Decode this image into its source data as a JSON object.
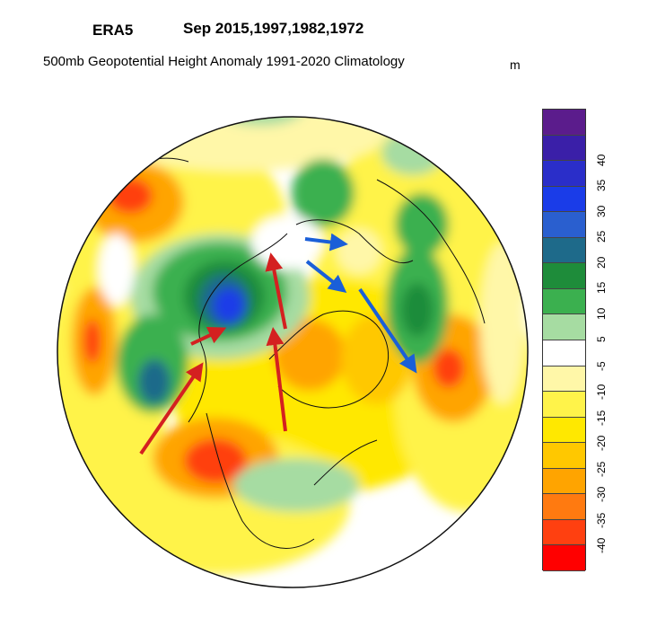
{
  "header": {
    "dataset": "ERA5",
    "period": "Sep 2015,1997,1982,1972",
    "description": "500mb Geopotential Height Anomaly  1991-2020 Climatology",
    "units": "m"
  },
  "colorbar": {
    "bins": [
      {
        "color": "#5b1c8c",
        "label": ""
      },
      {
        "color": "#3a1fa8",
        "label": "40"
      },
      {
        "color": "#2a2ec9",
        "label": "35"
      },
      {
        "color": "#1a3ce8",
        "label": "30"
      },
      {
        "color": "#2a5fcf",
        "label": "25"
      },
      {
        "color": "#1e6a8a",
        "label": "20"
      },
      {
        "color": "#1e8c3a",
        "label": "15"
      },
      {
        "color": "#3bb04f",
        "label": "10"
      },
      {
        "color": "#a6dca2",
        "label": "5"
      },
      {
        "color": "#ffffff",
        "label": "-5"
      },
      {
        "color": "#fff7a8",
        "label": "-10"
      },
      {
        "color": "#fff34a",
        "label": "-15"
      },
      {
        "color": "#ffe800",
        "label": "-20"
      },
      {
        "color": "#ffc800",
        "label": "-25"
      },
      {
        "color": "#ffa400",
        "label": "-30"
      },
      {
        "color": "#ff7a10",
        "label": "-35"
      },
      {
        "color": "#ff4010",
        "label": "-40"
      },
      {
        "color": "#ff0000",
        "label": ""
      }
    ]
  },
  "annotations": {
    "arrow_colors": {
      "red": "#d42020",
      "blue": "#1a5fd8"
    }
  }
}
